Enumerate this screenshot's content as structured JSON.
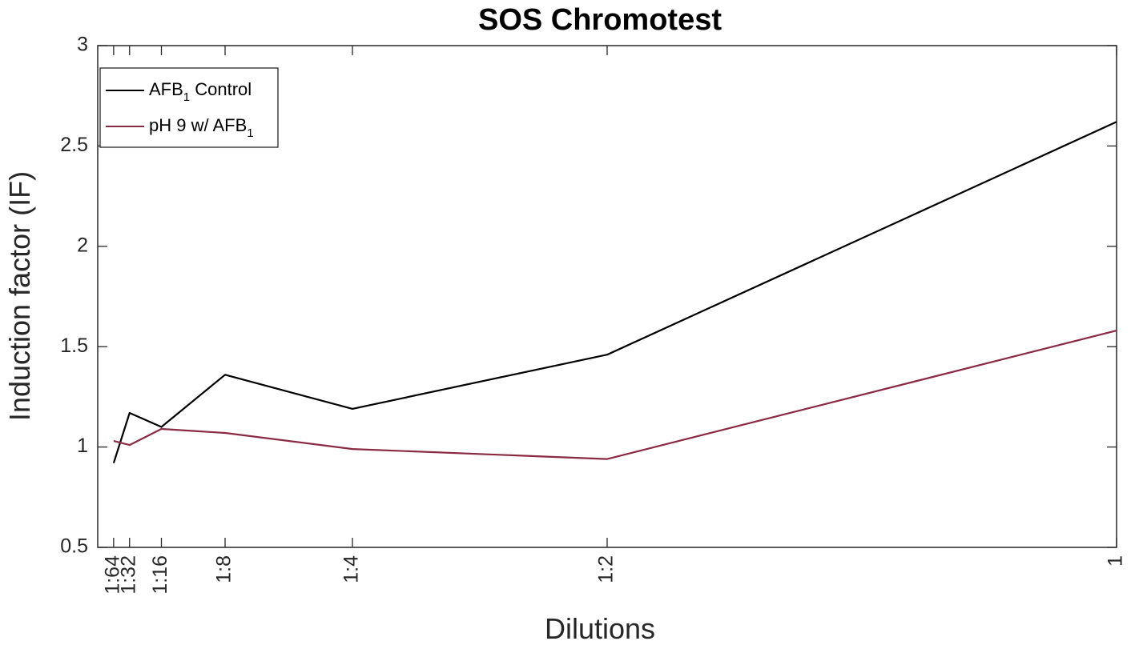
{
  "chart_data": {
    "type": "line",
    "title": "SOS Chromotest",
    "xlabel": "Dilutions",
    "ylabel": "Induction factor (IF)",
    "x": [
      0.015625,
      0.03125,
      0.0625,
      0.125,
      0.25,
      0.5,
      1
    ],
    "x_tick_labels": [
      "1:64",
      "1:32",
      "1:16",
      "1:8",
      "1:4",
      "1:2",
      "1"
    ],
    "xlim": [
      0,
      1
    ],
    "ylim": [
      0.5,
      3
    ],
    "y_ticks": [
      0.5,
      1,
      1.5,
      2,
      2.5,
      3
    ],
    "y_tick_labels": [
      "0.5",
      "1",
      "1.5",
      "2",
      "2.5",
      "3"
    ],
    "grid": false,
    "legend_position": "top-left",
    "series": [
      {
        "legend_base": "AFB",
        "legend_sub": "1",
        "legend_suffix": " Control",
        "legend_prefix": "",
        "color": "#000000",
        "values": [
          0.92,
          1.17,
          1.1,
          1.36,
          1.19,
          1.46,
          2.62
        ]
      },
      {
        "legend_prefix": "pH 9 w/ ",
        "legend_base": "AFB",
        "legend_sub": "1",
        "legend_suffix": "",
        "color": "#8b2a42",
        "values": [
          1.03,
          1.01,
          1.09,
          1.07,
          0.99,
          0.94,
          1.58
        ]
      }
    ]
  }
}
